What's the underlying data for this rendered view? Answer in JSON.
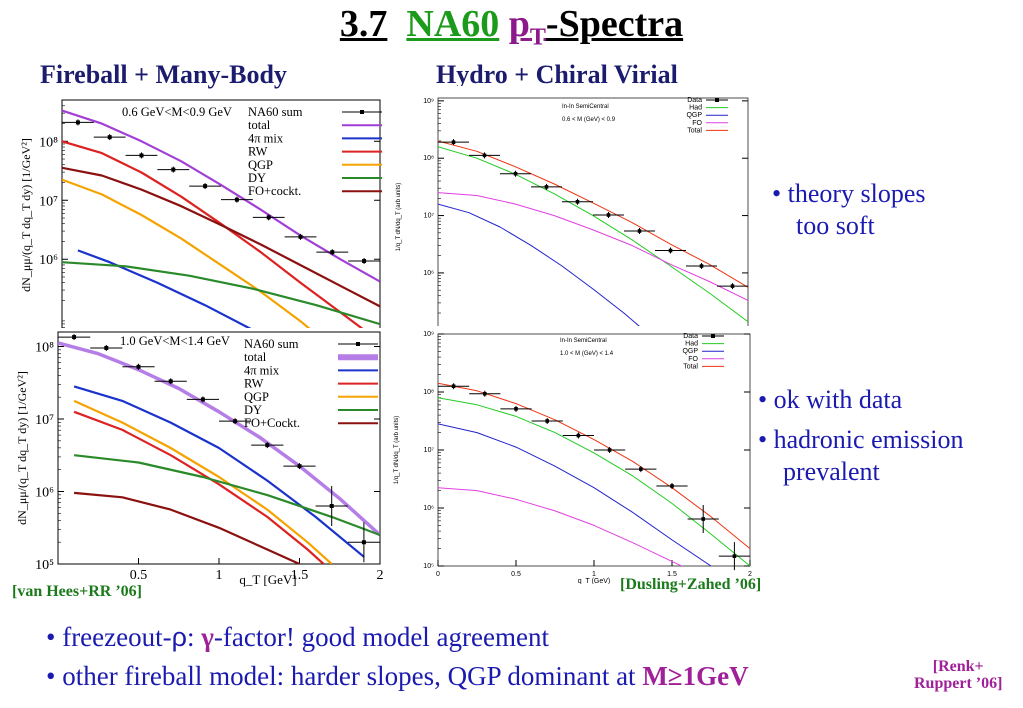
{
  "slide": {
    "title_num": "3.7",
    "title_a": "NA60",
    "title_p": "p",
    "title_sub": "T",
    "title_b": "-Spectra",
    "left_heading": "Fireball + Many-Body",
    "right_heading": "Hydro + Chiral Virial",
    "bullets_right": [
      "• theory slopes",
      "too soft",
      "• ok with data",
      "• hadronic emission",
      "prevalent"
    ],
    "cite_left": "[van Hees+RR ’06]",
    "cite_right": "[Dusling+Zahed ’06]",
    "foot1_a": "• freezeout-",
    "foot1_rho": "ρ",
    "foot1_b": ": ",
    "foot1_gamma": "γ",
    "foot1_c": "-factor! good model agreement",
    "foot2_a": "• other fireball model: harder slopes, QGP dominant at ",
    "foot2_m": "M≥1GeV",
    "foot2_ref1": "[Renk+",
    "foot2_ref2": "Ruppert ’06]"
  },
  "colors": {
    "title_green": "#1b9a1b",
    "title_purple": "#8b1a8b",
    "bullet_blue": "#1a1ab0",
    "cite_green": "#1b7a1b"
  },
  "chart_data": [
    {
      "id": "left_top",
      "type": "line",
      "ylabel": "dN_μμ/(q_T dq_T dy) [1/GeV²]",
      "annotation": "0.6 GeV<M<0.9 GeV",
      "ylog": true,
      "xlim": [
        0,
        2
      ],
      "ylim_log10": [
        4.8,
        8.7
      ],
      "yticks": [
        {
          "v": 8,
          "t": "10⁸"
        },
        {
          "v": 7,
          "t": "10⁷"
        },
        {
          "v": 6,
          "t": "10⁶"
        }
      ],
      "legend": [
        {
          "name": "NA60 sum",
          "color": "#000000",
          "data": true
        },
        {
          "name": "total",
          "color": "#a23fd6"
        },
        {
          "name": "4π mix",
          "color": "#1a33cc"
        },
        {
          "name": "RW",
          "color": "#dd2222"
        },
        {
          "name": "QGP",
          "color": "#f5a300"
        },
        {
          "name": "DY",
          "color": "#2a8a2a"
        },
        {
          "name": "FO+cockt.",
          "color": "#8b1010"
        }
      ],
      "points": [
        [
          0.1,
          8.32
        ],
        [
          0.3,
          8.07
        ],
        [
          0.5,
          7.76
        ],
        [
          0.7,
          7.52
        ],
        [
          0.9,
          7.24
        ],
        [
          1.1,
          7.01
        ],
        [
          1.3,
          6.71
        ],
        [
          1.5,
          6.38
        ],
        [
          1.7,
          6.12
        ],
        [
          1.9,
          5.97
        ]
      ],
      "curves": {
        "total": [
          [
            0,
            8.52
          ],
          [
            0.25,
            8.3
          ],
          [
            0.5,
            8.0
          ],
          [
            0.75,
            7.66
          ],
          [
            1.0,
            7.26
          ],
          [
            1.25,
            6.84
          ],
          [
            1.5,
            6.4
          ],
          [
            1.75,
            6.0
          ],
          [
            2,
            5.62
          ]
        ],
        "RW": [
          [
            0,
            8.0
          ],
          [
            0.25,
            7.8
          ],
          [
            0.5,
            7.47
          ],
          [
            0.75,
            7.06
          ],
          [
            1.0,
            6.6
          ],
          [
            1.25,
            6.12
          ],
          [
            1.5,
            5.6
          ],
          [
            1.75,
            5.1
          ],
          [
            2,
            4.6
          ]
        ],
        "QGP": [
          [
            0,
            7.35
          ],
          [
            0.25,
            7.1
          ],
          [
            0.5,
            6.75
          ],
          [
            0.75,
            6.35
          ],
          [
            1.0,
            5.9
          ],
          [
            1.25,
            5.45
          ],
          [
            1.5,
            4.95
          ],
          [
            1.7,
            4.5
          ]
        ],
        "4π mix": [
          [
            0.1,
            6.15
          ],
          [
            0.3,
            5.95
          ],
          [
            0.6,
            5.6
          ],
          [
            0.9,
            5.22
          ],
          [
            1.2,
            4.8
          ],
          [
            1.3,
            4.62
          ]
        ],
        "DY": [
          [
            0,
            5.95
          ],
          [
            0.4,
            5.88
          ],
          [
            0.8,
            5.72
          ],
          [
            1.2,
            5.5
          ],
          [
            1.6,
            5.22
          ],
          [
            2,
            4.9
          ]
        ],
        "FO+cockt.": [
          [
            0,
            7.55
          ],
          [
            0.25,
            7.42
          ],
          [
            0.5,
            7.18
          ],
          [
            0.75,
            6.9
          ],
          [
            1.0,
            6.58
          ],
          [
            1.25,
            6.25
          ],
          [
            1.5,
            5.9
          ],
          [
            1.75,
            5.55
          ],
          [
            2,
            5.2
          ]
        ]
      }
    },
    {
      "id": "left_bottom",
      "type": "line",
      "ylabel": "dN_μμ/(q_T dq_T dy) [1/GeV²]",
      "xlabel": "q_T [GeV]",
      "annotation": "1.0 GeV<M<1.4 GeV",
      "ylog": true,
      "xlim": [
        0,
        2
      ],
      "ylim_log10": [
        5,
        8.2
      ],
      "yticks": [
        {
          "v": 8,
          "t": "10⁸"
        },
        {
          "v": 7,
          "t": "10⁷"
        },
        {
          "v": 6,
          "t": "10⁶"
        },
        {
          "v": 5,
          "t": "10⁵"
        }
      ],
      "xticks": [
        {
          "v": 0.5,
          "t": "0.5"
        },
        {
          "v": 1,
          "t": "1"
        },
        {
          "v": 1.5,
          "t": "1.5"
        },
        {
          "v": 2,
          "t": "2"
        }
      ],
      "legend": [
        {
          "name": "NA60 sum",
          "color": "#000000",
          "data": true
        },
        {
          "name": "total",
          "color": "#b57ee6",
          "band": true
        },
        {
          "name": "4π mix",
          "color": "#1a33cc"
        },
        {
          "name": "RW",
          "color": "#dd2222"
        },
        {
          "name": "QGP",
          "color": "#f5a300"
        },
        {
          "name": "DY",
          "color": "#2a8a2a"
        },
        {
          "name": "FO+Cockt.",
          "color": "#8b1010"
        }
      ],
      "points": [
        [
          0.1,
          8.13
        ],
        [
          0.3,
          7.98
        ],
        [
          0.5,
          7.72
        ],
        [
          0.7,
          7.52
        ],
        [
          0.9,
          7.27
        ],
        [
          1.1,
          6.97
        ],
        [
          1.3,
          6.64
        ],
        [
          1.5,
          6.35
        ],
        [
          1.7,
          5.8
        ],
        [
          1.9,
          5.3
        ]
      ],
      "curves": {
        "total": [
          [
            0,
            8.05
          ],
          [
            0.25,
            7.9
          ],
          [
            0.5,
            7.68
          ],
          [
            0.75,
            7.42
          ],
          [
            1.0,
            7.1
          ],
          [
            1.25,
            6.75
          ],
          [
            1.5,
            6.35
          ],
          [
            1.75,
            5.9
          ],
          [
            2,
            5.4
          ]
        ],
        "4π mix": [
          [
            0.1,
            7.45
          ],
          [
            0.4,
            7.25
          ],
          [
            0.7,
            6.95
          ],
          [
            1.0,
            6.6
          ],
          [
            1.3,
            6.15
          ],
          [
            1.6,
            5.65
          ],
          [
            1.9,
            5.1
          ]
        ],
        "QGP": [
          [
            0.1,
            7.25
          ],
          [
            0.4,
            6.95
          ],
          [
            0.7,
            6.6
          ],
          [
            1.0,
            6.2
          ],
          [
            1.3,
            5.75
          ],
          [
            1.55,
            5.3
          ],
          [
            1.7,
            5.0
          ]
        ],
        "RW": [
          [
            0.1,
            7.1
          ],
          [
            0.4,
            6.85
          ],
          [
            0.7,
            6.5
          ],
          [
            1.0,
            6.1
          ],
          [
            1.3,
            5.65
          ],
          [
            1.55,
            5.2
          ],
          [
            1.65,
            5.0
          ]
        ],
        "DY": [
          [
            0.1,
            6.5
          ],
          [
            0.5,
            6.4
          ],
          [
            0.9,
            6.2
          ],
          [
            1.3,
            5.95
          ],
          [
            1.7,
            5.65
          ],
          [
            2,
            5.4
          ]
        ],
        "FO+Cockt.": [
          [
            0.1,
            5.98
          ],
          [
            0.4,
            5.92
          ],
          [
            0.7,
            5.75
          ],
          [
            1.0,
            5.5
          ],
          [
            1.3,
            5.2
          ],
          [
            1.5,
            5.0
          ]
        ]
      }
    },
    {
      "id": "right_top",
      "type": "line",
      "ylabel": "1/q_T dN/dq_T (arb units)",
      "annotation_1": "In-In SemiCentral",
      "annotation_2": "0.6 < M (GeV) < 0.9",
      "ylog": true,
      "xlim": [
        0,
        2
      ],
      "ylim_log10": [
        4.9,
        9.05
      ],
      "yticks": [
        {
          "v": 9,
          "t": "10⁹"
        },
        {
          "v": 8,
          "t": "10⁸"
        },
        {
          "v": 7,
          "t": "10⁷"
        },
        {
          "v": 6,
          "t": "10⁶"
        },
        {
          "v": 5,
          "t": "10⁵"
        }
      ],
      "legend": [
        {
          "name": "Data",
          "color": "#000000",
          "data": true
        },
        {
          "name": "Had",
          "color": "#22cc22"
        },
        {
          "name": "QGP",
          "color": "#2222cc"
        },
        {
          "name": "FO",
          "color": "#e040e0"
        },
        {
          "name": "Total",
          "color": "#ee3311"
        }
      ],
      "points": [
        [
          0.1,
          8.28
        ],
        [
          0.3,
          8.05
        ],
        [
          0.5,
          7.73
        ],
        [
          0.7,
          7.5
        ],
        [
          0.9,
          7.24
        ],
        [
          1.1,
          7.01
        ],
        [
          1.3,
          6.73
        ],
        [
          1.5,
          6.39
        ],
        [
          1.7,
          6.12
        ],
        [
          1.9,
          5.77
        ]
      ],
      "curves": {
        "Total": [
          [
            0,
            8.3
          ],
          [
            0.25,
            8.12
          ],
          [
            0.5,
            7.85
          ],
          [
            0.75,
            7.55
          ],
          [
            1.0,
            7.22
          ],
          [
            1.25,
            6.88
          ],
          [
            1.5,
            6.5
          ],
          [
            1.75,
            6.15
          ],
          [
            2,
            5.75
          ]
        ],
        "Had": [
          [
            0,
            8.2
          ],
          [
            0.25,
            8.0
          ],
          [
            0.5,
            7.72
          ],
          [
            0.75,
            7.38
          ],
          [
            1.0,
            7.0
          ],
          [
            1.25,
            6.58
          ],
          [
            1.5,
            6.12
          ],
          [
            1.75,
            5.65
          ],
          [
            2,
            5.15
          ]
        ],
        "FO": [
          [
            0,
            7.4
          ],
          [
            0.25,
            7.35
          ],
          [
            0.5,
            7.2
          ],
          [
            0.75,
            7.0
          ],
          [
            1.0,
            6.75
          ],
          [
            1.25,
            6.48
          ],
          [
            1.5,
            6.15
          ],
          [
            1.75,
            5.85
          ],
          [
            2,
            5.52
          ]
        ],
        "QGP": [
          [
            0,
            7.2
          ],
          [
            0.2,
            7.05
          ],
          [
            0.4,
            6.8
          ],
          [
            0.6,
            6.48
          ],
          [
            0.8,
            6.12
          ],
          [
            1.0,
            5.72
          ],
          [
            1.2,
            5.3
          ],
          [
            1.35,
            4.95
          ]
        ]
      }
    },
    {
      "id": "right_bottom",
      "type": "line",
      "ylabel": "1/q_T dN/dq_T (arb units)",
      "xlabel": "q_T (GeV)",
      "annotation_1": "In-In SemiCentral",
      "annotation_2": "1.0 < M (GeV) < 1.4",
      "ylog": true,
      "xlim": [
        0,
        2
      ],
      "ylim_log10": [
        5,
        9
      ],
      "yticks": [
        {
          "v": 9,
          "t": "10⁹"
        },
        {
          "v": 8,
          "t": "10⁸"
        },
        {
          "v": 7,
          "t": "10⁷"
        },
        {
          "v": 6,
          "t": "10⁶"
        },
        {
          "v": 5,
          "t": "10⁵"
        }
      ],
      "xticks": [
        {
          "v": 0,
          "t": "0"
        },
        {
          "v": 0.5,
          "t": "0.5"
        },
        {
          "v": 1,
          "t": "1"
        },
        {
          "v": 1.5,
          "t": "1.5"
        },
        {
          "v": 2,
          "t": "2"
        }
      ],
      "legend": [
        {
          "name": "Data",
          "color": "#000000",
          "data": true
        },
        {
          "name": "Had",
          "color": "#22cc22"
        },
        {
          "name": "QGP",
          "color": "#2222cc"
        },
        {
          "name": "FO",
          "color": "#e040e0"
        },
        {
          "name": "Total",
          "color": "#ee3311"
        }
      ],
      "points": [
        [
          0.1,
          8.1
        ],
        [
          0.3,
          7.97
        ],
        [
          0.5,
          7.71
        ],
        [
          0.7,
          7.5
        ],
        [
          0.9,
          7.25
        ],
        [
          1.1,
          7.0
        ],
        [
          1.3,
          6.67
        ],
        [
          1.5,
          6.38
        ],
        [
          1.7,
          5.81
        ],
        [
          1.9,
          5.17
        ]
      ],
      "curves": {
        "Total": [
          [
            0,
            8.15
          ],
          [
            0.25,
            8.02
          ],
          [
            0.5,
            7.8
          ],
          [
            0.75,
            7.52
          ],
          [
            1.0,
            7.18
          ],
          [
            1.25,
            6.8
          ],
          [
            1.5,
            6.35
          ],
          [
            1.75,
            5.85
          ],
          [
            2,
            5.3
          ]
        ],
        "Had": [
          [
            0,
            7.9
          ],
          [
            0.25,
            7.78
          ],
          [
            0.5,
            7.58
          ],
          [
            0.75,
            7.3
          ],
          [
            1.0,
            6.95
          ],
          [
            1.25,
            6.55
          ],
          [
            1.5,
            6.08
          ],
          [
            1.75,
            5.55
          ],
          [
            2,
            5.0
          ]
        ],
        "QGP": [
          [
            0,
            7.45
          ],
          [
            0.25,
            7.3
          ],
          [
            0.5,
            7.05
          ],
          [
            0.75,
            6.72
          ],
          [
            1.0,
            6.35
          ],
          [
            1.25,
            5.92
          ],
          [
            1.5,
            5.45
          ],
          [
            1.75,
            5.0
          ],
          [
            1.85,
            4.85
          ]
        ],
        "FO": [
          [
            0,
            6.35
          ],
          [
            0.25,
            6.3
          ],
          [
            0.5,
            6.15
          ],
          [
            0.75,
            5.95
          ],
          [
            1.0,
            5.7
          ],
          [
            1.25,
            5.4
          ],
          [
            1.5,
            5.08
          ],
          [
            1.6,
            4.95
          ]
        ]
      }
    }
  ]
}
